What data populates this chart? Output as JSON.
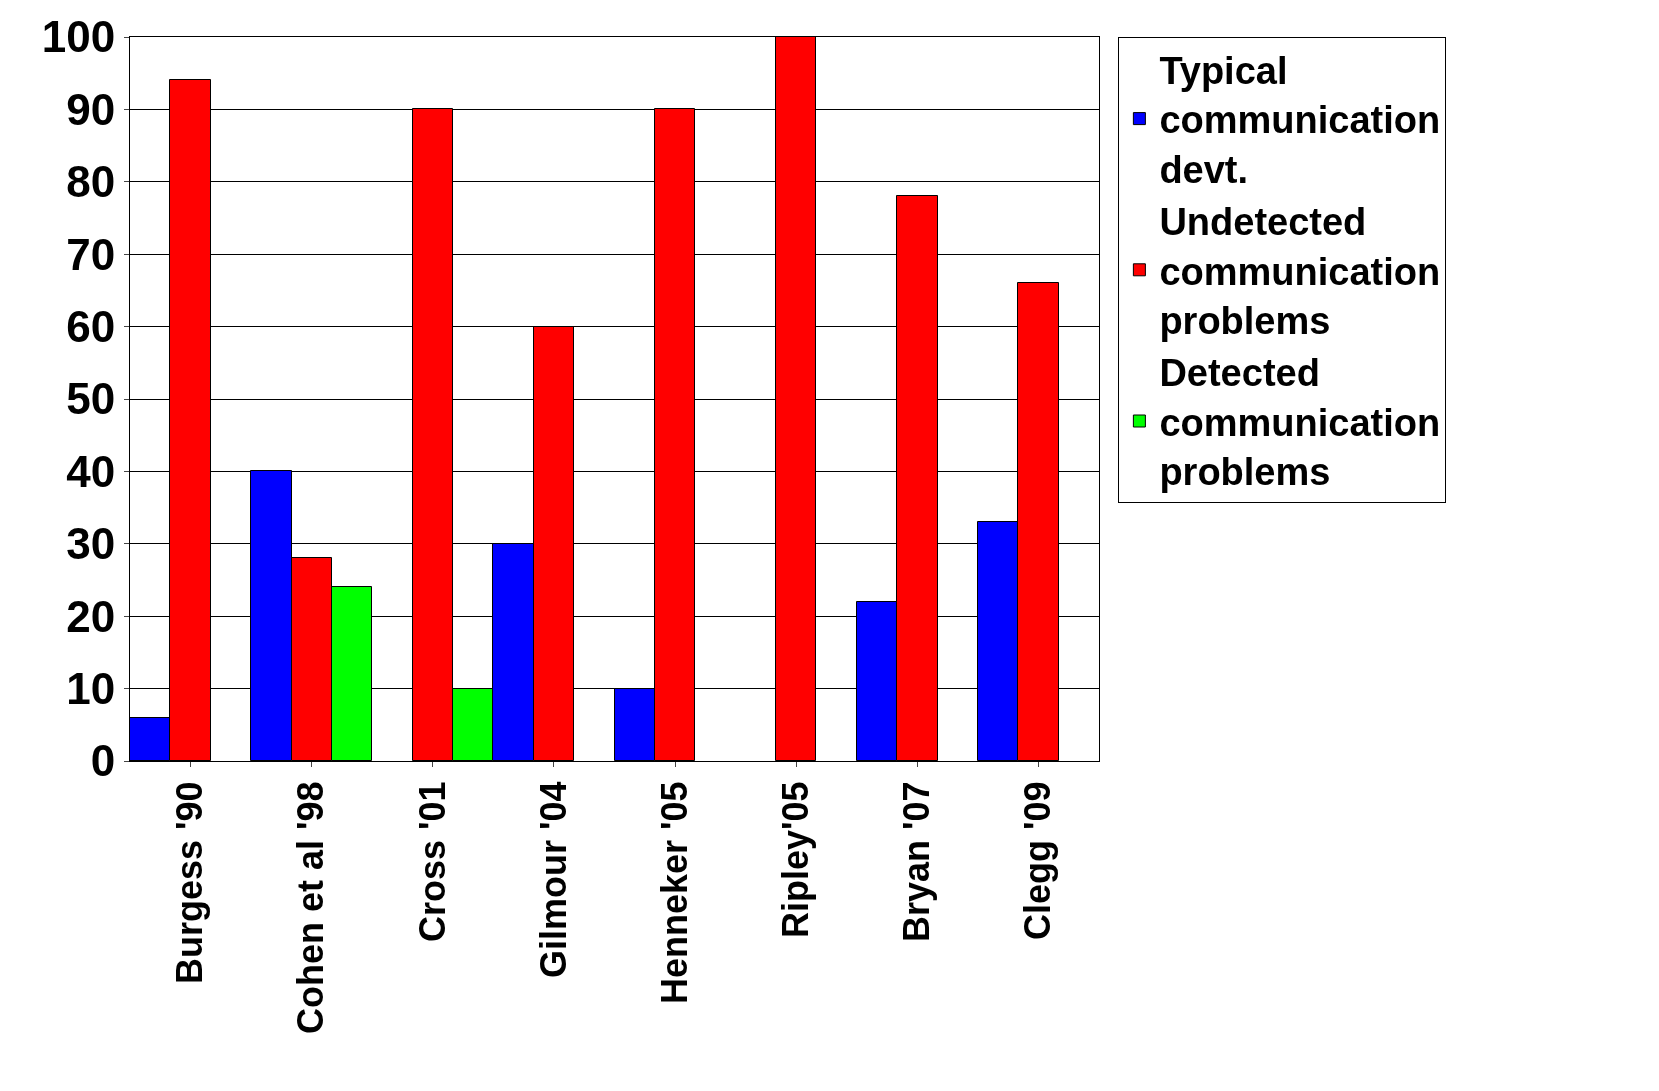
{
  "chart_data": {
    "type": "bar",
    "categories": [
      "Burgess '90",
      "Cohen et al '98",
      "Cross '01",
      "Gilmour '04",
      "Henneker '05",
      "Ripley'05",
      "Bryan '07",
      "Clegg '09"
    ],
    "series": [
      {
        "name": "Typical communication devt.",
        "color": "#0000ff",
        "values": [
          6,
          40,
          null,
          30,
          10,
          null,
          22,
          33
        ]
      },
      {
        "name": "Undetected communication problems",
        "color": "#ff0000",
        "values": [
          94,
          28,
          90,
          60,
          90,
          100,
          78,
          66
        ]
      },
      {
        "name": "Detected communication problems",
        "color": "#00ff00",
        "values": [
          null,
          24,
          10,
          null,
          null,
          null,
          null,
          null
        ]
      }
    ],
    "ylim": [
      0,
      100
    ],
    "yticks": [
      0,
      10,
      20,
      30,
      40,
      50,
      60,
      70,
      80,
      90,
      100
    ],
    "grid": "y",
    "legend": "top right"
  }
}
